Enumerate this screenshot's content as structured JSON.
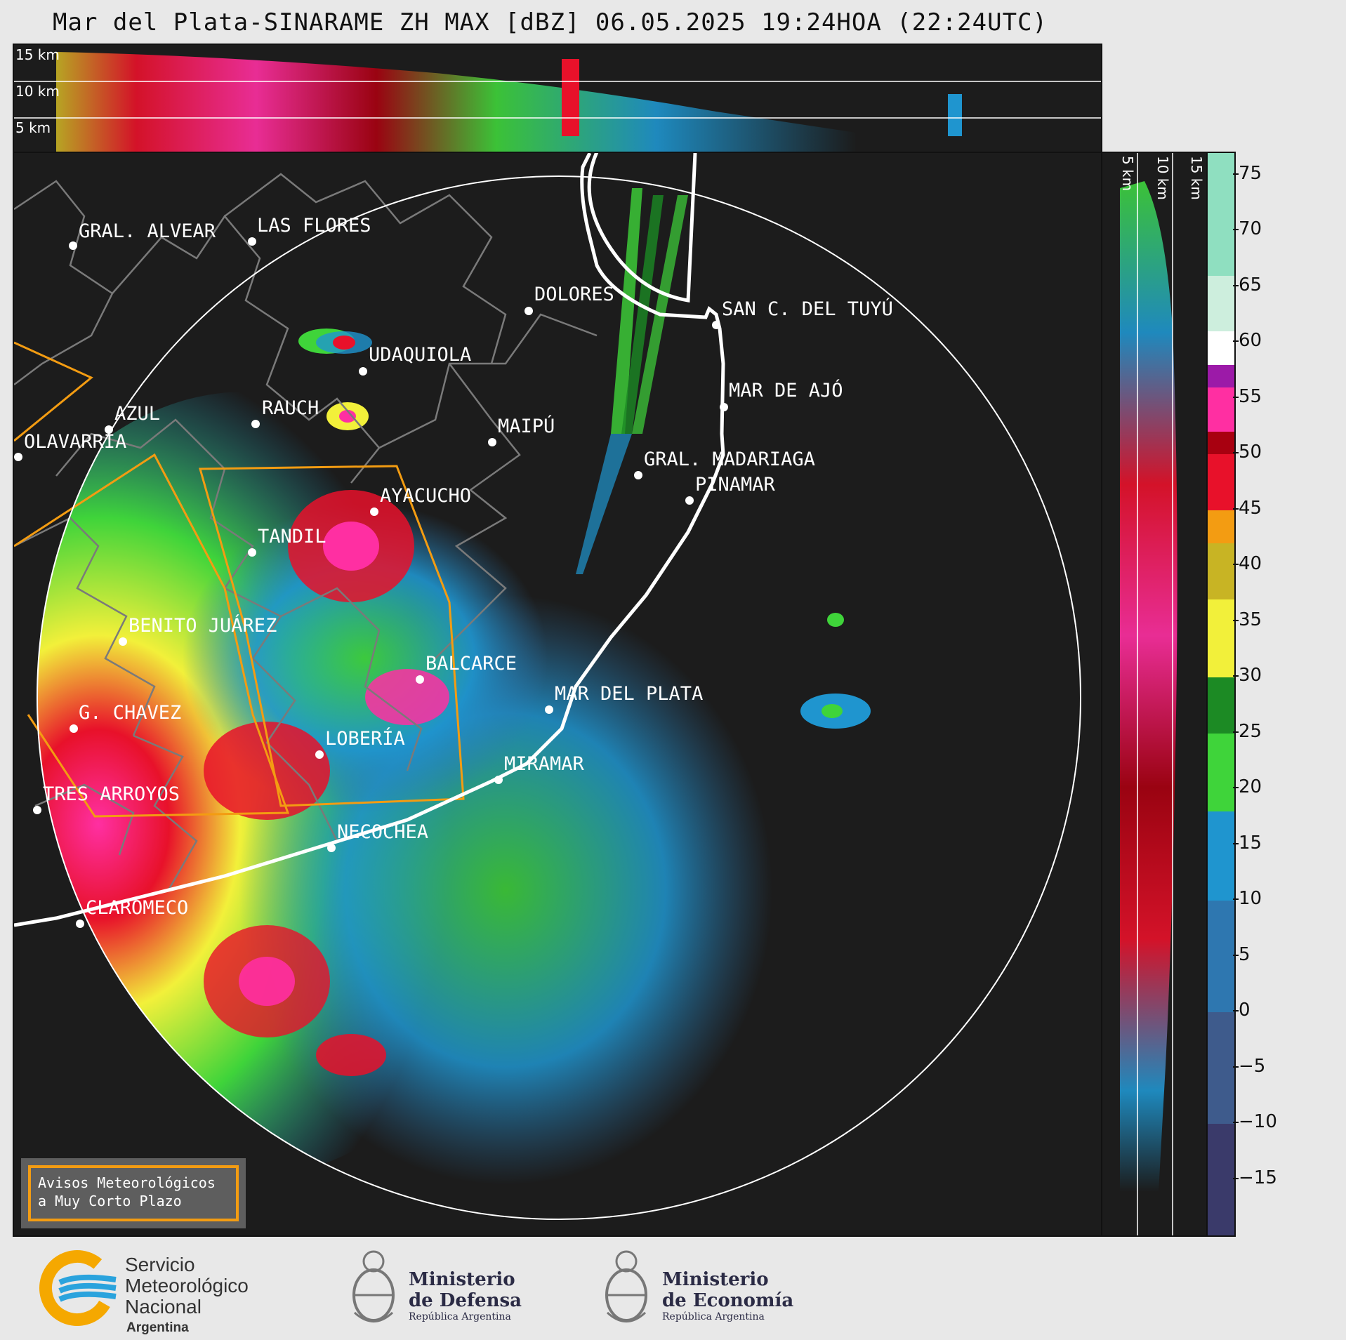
{
  "title": "Mar del Plata-SINARAME ZH MAX [dBZ] 06.05.2025 19:24HOA (22:24UTC)",
  "top_panel": {
    "height_labels": [
      "15 km",
      "10 km",
      "5 km"
    ]
  },
  "side_panel": {
    "height_labels": [
      "5 km",
      "10 km",
      "15 km"
    ]
  },
  "cities": [
    {
      "name": "GRAL. ALVEAR"
    },
    {
      "name": "LAS FLORES"
    },
    {
      "name": "DOLORES"
    },
    {
      "name": "SAN C. DEL TUYÚ"
    },
    {
      "name": "UDAQUIOLA"
    },
    {
      "name": "MAR DE AJÓ"
    },
    {
      "name": "AZUL"
    },
    {
      "name": "RAUCH"
    },
    {
      "name": "MAIPÚ"
    },
    {
      "name": "OLAVARRÍA"
    },
    {
      "name": "GRAL. MADARIAGA"
    },
    {
      "name": "PINAMAR"
    },
    {
      "name": "AYACUCHO"
    },
    {
      "name": "TANDIL"
    },
    {
      "name": "BENITO JUÁREZ"
    },
    {
      "name": "BALCARCE"
    },
    {
      "name": "MAR DEL PLATA"
    },
    {
      "name": "G. CHAVEZ"
    },
    {
      "name": "LOBERÍA"
    },
    {
      "name": "MIRAMAR"
    },
    {
      "name": "TRES ARROYOS"
    },
    {
      "name": "NECOCHEA"
    },
    {
      "name": "CLAROMECO"
    }
  ],
  "warning_box": {
    "line1": "Avisos Meteorológicos",
    "line2": "a Muy Corto Plazo"
  },
  "colorbar": {
    "unit": "dBZ",
    "range": [
      -20,
      77
    ],
    "ticks": [
      "75",
      "70",
      "65",
      "60",
      "55",
      "50",
      "45",
      "40",
      "35",
      "30",
      "25",
      "20",
      "15",
      "10",
      "5",
      "0",
      "−5",
      "−10",
      "−15"
    ],
    "tick_values": [
      75,
      70,
      65,
      60,
      55,
      50,
      45,
      40,
      35,
      30,
      25,
      20,
      15,
      10,
      5,
      0,
      -5,
      -10,
      -15
    ],
    "stops": [
      {
        "from": -20,
        "color": "#3a3a6a"
      },
      {
        "from": -10,
        "color": "#3e5b8c"
      },
      {
        "from": 0,
        "color": "#2e77b0"
      },
      {
        "from": 10,
        "color": "#1f95cf"
      },
      {
        "from": 18,
        "color": "#3fd43a"
      },
      {
        "from": 25,
        "color": "#1c8a24"
      },
      {
        "from": 30,
        "color": "#f2f03a"
      },
      {
        "from": 37,
        "color": "#c8b424"
      },
      {
        "from": 42,
        "color": "#f39c12"
      },
      {
        "from": 45,
        "color": "#e8112a"
      },
      {
        "from": 50,
        "color": "#a80010"
      },
      {
        "from": 52,
        "color": "#ff2fa2"
      },
      {
        "from": 56,
        "color": "#9c1aa8"
      },
      {
        "from": 58,
        "color": "#ffffff"
      },
      {
        "from": 61,
        "color": "#cdeedd"
      },
      {
        "from": 66,
        "color": "#8fdfc0"
      }
    ]
  },
  "footer": {
    "smn_lines": [
      "Servicio",
      "Meteorológico",
      "Nacional"
    ],
    "smn_country": "Argentina",
    "defensa_lines": [
      "Ministerio",
      "de Defensa"
    ],
    "defensa_sub": "República Argentina",
    "economia_lines": [
      "Ministerio",
      "de Economía"
    ],
    "economia_sub": "República Argentina"
  },
  "colors": {
    "background": "#e8e8e8",
    "panel_bg": "#1c1c1c",
    "alert_outline": "#f39c12",
    "coast": "#ffffff",
    "borders": "#7a7a7a"
  }
}
